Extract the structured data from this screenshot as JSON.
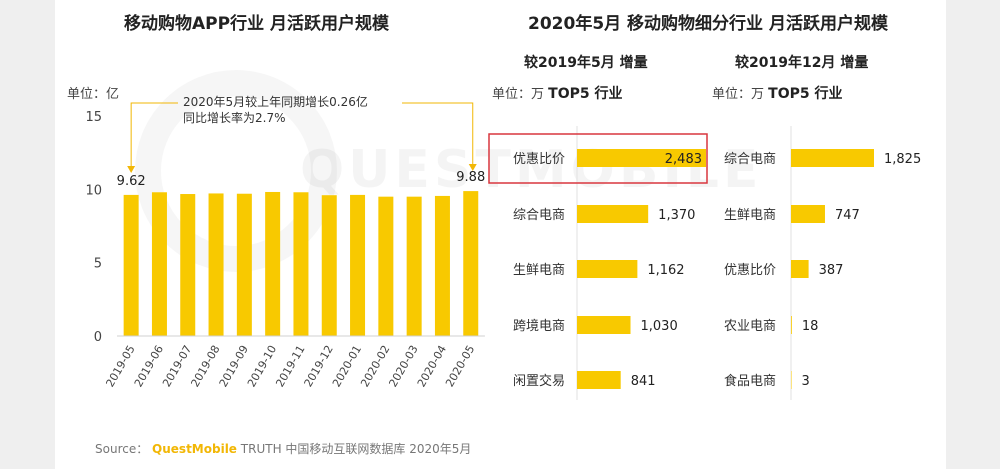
{
  "left_title": "移动购物APP行业 月活跃用户规模",
  "right_title": "2020年5月 移动购物细分行业 月活跃用户规模",
  "left_unit": "单位：亿",
  "annotation": [
    "2020年5月较上年同期增长0.26亿",
    "同比增长率为2.7%"
  ],
  "sub_left": "较2019年5月 增量",
  "sub_right": "较2019年12月 增量",
  "unit_left": {
    "prefix": "单位：万",
    "suffix": "TOP5 行业"
  },
  "unit_right": {
    "prefix": "单位：万",
    "suffix": "TOP5 行业"
  },
  "watermark": "QUESTMOBILE",
  "source": {
    "label": "Source：",
    "brand": "QuestMobile",
    "rest": "TRUTH 中国移动互联网数据库 2020年5月"
  },
  "colors": {
    "bar": "#f8c900",
    "highlight": "#d9363e",
    "annotation": "#f2b705"
  },
  "chart_data": [
    {
      "type": "bar",
      "title": "移动购物APP行业 月活跃用户规模",
      "ylabel": "单位：亿",
      "ylim": [
        0,
        15
      ],
      "yticks": [
        0,
        5,
        10,
        15
      ],
      "categories": [
        "2019-05",
        "2019-06",
        "2019-07",
        "2019-08",
        "2019-09",
        "2019-10",
        "2019-11",
        "2019-12",
        "2020-01",
        "2020-02",
        "2020-03",
        "2020-04",
        "2020-05"
      ],
      "values": [
        9.62,
        9.8,
        9.68,
        9.72,
        9.7,
        9.82,
        9.8,
        9.6,
        9.62,
        9.5,
        9.5,
        9.55,
        9.88
      ],
      "labeled": {
        "0": "9.62",
        "12": "9.88"
      }
    },
    {
      "type": "bar",
      "orientation": "horizontal",
      "title": "较2019年5月 增量",
      "unit": "万",
      "categories": [
        "优惠比价",
        "综合电商",
        "生鲜电商",
        "跨境电商",
        "闲置交易"
      ],
      "values": [
        2483,
        1370,
        1162,
        1030,
        841
      ],
      "labels": [
        "2,483",
        "1,370",
        "1,162",
        "1,030",
        "841"
      ],
      "highlight": 0
    },
    {
      "type": "bar",
      "orientation": "horizontal",
      "title": "较2019年12月 增量",
      "unit": "万",
      "categories": [
        "综合电商",
        "生鲜电商",
        "优惠比价",
        "农业电商",
        "食品电商"
      ],
      "values": [
        1825,
        747,
        387,
        18,
        3
      ],
      "labels": [
        "1,825",
        "747",
        "387",
        "18",
        "3"
      ]
    }
  ]
}
